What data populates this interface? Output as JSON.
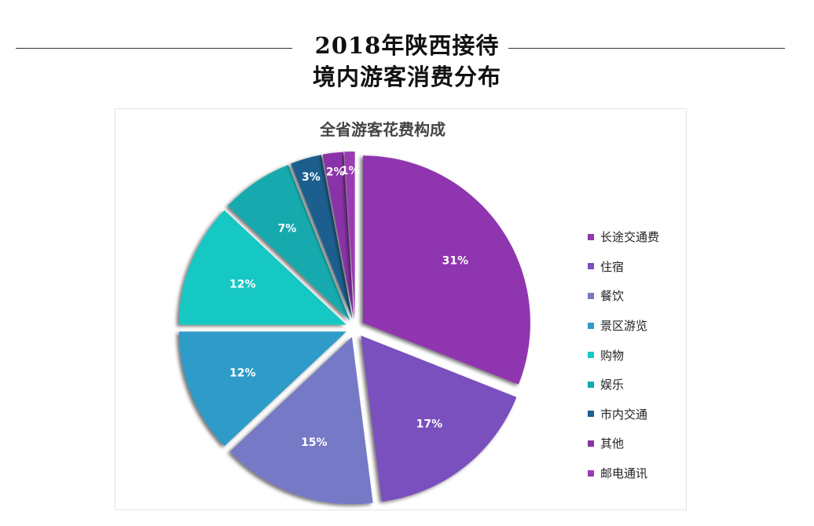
{
  "page": {
    "title_line1": "2018年陕西接待",
    "title_line2": "境内游客消费分布"
  },
  "chart_data": {
    "type": "pie",
    "title": "全省游客花费构成",
    "categories": [
      "长途交通费",
      "住宿",
      "餐饮",
      "景区游览",
      "购物",
      "娱乐",
      "市内交通",
      "其他",
      "邮电通讯"
    ],
    "values": [
      31,
      17,
      15,
      12,
      12,
      7,
      3,
      2,
      1
    ],
    "labels": [
      "31%",
      "17%",
      "15%",
      "12%",
      "12%",
      "7%",
      "3%",
      "2%",
      "1%"
    ],
    "colors": [
      "#9036b0",
      "#7a4fbe",
      "#7579c6",
      "#2e9bc9",
      "#17c8c4",
      "#13aaae",
      "#1e5f8f",
      "#8a33a8",
      "#9a3bb4"
    ],
    "legend_position": "right",
    "start_angle": "12 o'clock, clockwise"
  }
}
